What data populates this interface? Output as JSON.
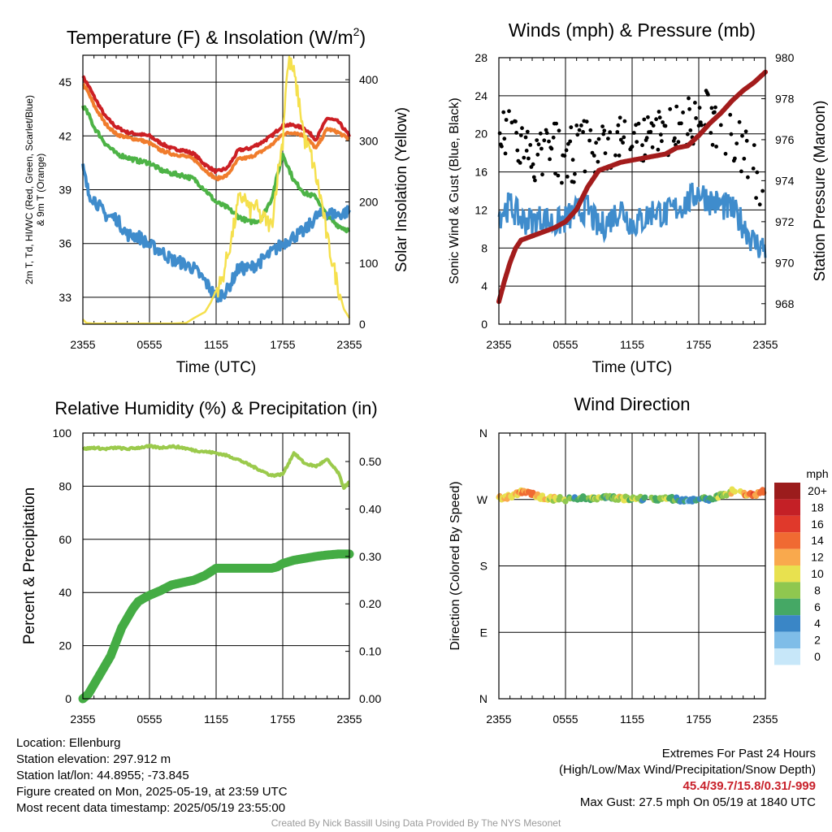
{
  "chart_data": [
    {
      "type": "line",
      "title": "Temperature (F) & Insolation (W/m",
      "title_sup": "2",
      "title_tail": ")",
      "xlabel": "Time (UTC)",
      "ylabel_left": "2m T, Td, HI/WC (Red, Green, Scarlet/Blue) & 9m T (Orange)",
      "ylabel_right": "Solar Insolation (Yellow)",
      "x_ticks": [
        "2355",
        "0555",
        "1155",
        "1755",
        "2355"
      ],
      "ylim_left": [
        31.5,
        46.5
      ],
      "yticks_left": [
        33,
        36,
        39,
        42,
        45
      ],
      "ylim_right": [
        0,
        440
      ],
      "yticks_right": [
        0,
        100,
        200,
        300,
        400
      ],
      "grid": true,
      "series": [
        {
          "axis": "left",
          "color": "#cc1f24",
          "width": 4,
          "x": [
            0,
            0.5,
            1,
            2,
            3,
            4,
            5,
            6,
            7,
            8,
            9,
            10,
            11,
            12,
            13,
            14,
            15,
            16,
            17,
            18,
            19,
            20,
            21,
            22,
            23,
            24
          ],
          "values": [
            45.3,
            44.8,
            44.2,
            43.1,
            42.5,
            42.2,
            42.1,
            42.0,
            41.6,
            41.3,
            41.2,
            41.0,
            40.4,
            40.0,
            40.2,
            41.2,
            41.3,
            41.6,
            42.0,
            42.6,
            42.6,
            42.4,
            41.8,
            43.0,
            42.8,
            42.0
          ]
        },
        {
          "axis": "left",
          "color": "#f07c2c",
          "width": 4,
          "x": [
            0,
            0.5,
            1,
            2,
            3,
            4,
            5,
            6,
            7,
            8,
            9,
            10,
            11,
            12,
            13,
            14,
            15,
            16,
            17,
            18,
            19,
            20,
            21,
            22,
            23,
            24
          ],
          "values": [
            44.9,
            44.4,
            43.7,
            42.7,
            42.1,
            41.9,
            41.8,
            41.6,
            41.2,
            41.0,
            40.9,
            40.7,
            40.1,
            39.6,
            39.8,
            40.7,
            40.8,
            41.1,
            41.5,
            42.1,
            42.2,
            42.0,
            41.3,
            42.4,
            42.2,
            41.8
          ]
        },
        {
          "axis": "left",
          "color": "#4db346",
          "width": 4,
          "x": [
            0,
            0.5,
            1,
            2,
            3,
            4,
            5,
            6,
            7,
            8,
            9,
            10,
            11,
            12,
            13,
            14,
            15,
            16,
            17,
            18,
            19,
            20,
            21,
            22,
            23,
            24
          ],
          "values": [
            43.7,
            43.2,
            42.5,
            41.6,
            41.0,
            40.8,
            40.6,
            40.5,
            40.1,
            39.9,
            39.8,
            39.6,
            39.0,
            38.3,
            38.0,
            37.5,
            37.2,
            37.3,
            38.5,
            41.0,
            39.5,
            38.8,
            38.6,
            37.5,
            37.0,
            36.7
          ]
        },
        {
          "axis": "left",
          "color": "#3f8ccc",
          "width": 4,
          "x": [
            0,
            0.5,
            1,
            2,
            3,
            4,
            5,
            6,
            7,
            8,
            9,
            10,
            11,
            12,
            13,
            14,
            15,
            16,
            17,
            18,
            19,
            20,
            21,
            22,
            23,
            24
          ],
          "values": [
            40.2,
            38.8,
            38.5,
            37.6,
            37.4,
            36.5,
            36.4,
            35.9,
            35.6,
            35.1,
            34.9,
            34.6,
            33.9,
            33.0,
            33.4,
            34.6,
            34.6,
            35.0,
            35.5,
            36.0,
            36.4,
            36.7,
            37.5,
            37.7,
            37.6,
            37.8
          ]
        },
        {
          "axis": "right",
          "color": "#f5e04d",
          "width": 2.5,
          "x": [
            0,
            0.3,
            1,
            3,
            5,
            8,
            9.3,
            10,
            11,
            11.5,
            12,
            12.5,
            13,
            13.5,
            14,
            14.5,
            15,
            15.5,
            16,
            16.5,
            17,
            17.5,
            18,
            18.3,
            18.6,
            19,
            19.5,
            20,
            20.5,
            21,
            21.5,
            22,
            22.5,
            23,
            23.5,
            24
          ],
          "values": [
            8,
            2,
            1,
            1,
            1,
            1,
            2,
            10,
            20,
            35,
            55,
            70,
            110,
            150,
            200,
            210,
            185,
            195,
            175,
            170,
            160,
            240,
            300,
            400,
            430,
            410,
            360,
            300,
            280,
            240,
            200,
            140,
            100,
            60,
            25,
            10
          ]
        }
      ]
    },
    {
      "type": "line",
      "title": "Winds (mph) & Pressure (mb)",
      "xlabel": "Time (UTC)",
      "ylabel_left": "Sonic Wind & Gust (Blue, Black)",
      "ylabel_right": "Station Pressure (Maroon)",
      "x_ticks": [
        "2355",
        "0555",
        "1155",
        "1755",
        "2355"
      ],
      "ylim_left": [
        0,
        28
      ],
      "yticks_left": [
        0,
        4,
        8,
        12,
        16,
        20,
        24,
        28
      ],
      "ylim_right": [
        967,
        980
      ],
      "yticks_right": [
        968,
        970,
        972,
        974,
        976,
        978,
        980
      ],
      "grid": true,
      "series": [
        {
          "name": "Sonic Wind",
          "axis": "left",
          "color": "#3f8ccc",
          "x": [
            0,
            1,
            2,
            3,
            4,
            5,
            6,
            7,
            8,
            9,
            10,
            11,
            12,
            13,
            14,
            15,
            16,
            17,
            18,
            19,
            20,
            21,
            22,
            23,
            24
          ],
          "values": [
            11.5,
            12.5,
            11.0,
            10.8,
            11.2,
            10.5,
            11.0,
            11.8,
            12.2,
            10.0,
            11.0,
            12.2,
            10.5,
            11.0,
            12.0,
            11.5,
            12.2,
            12.8,
            14.0,
            13.0,
            12.5,
            12.0,
            10.5,
            8.5,
            8.0
          ]
        },
        {
          "name": "Gust",
          "axis": "left",
          "color": "#000000",
          "x": [
            0,
            1,
            2,
            3,
            4,
            5,
            6,
            7,
            8,
            9,
            10,
            11,
            12,
            13,
            14,
            15,
            16,
            17,
            18,
            19,
            20,
            21,
            22,
            23,
            24
          ],
          "values": [
            19.5,
            19.5,
            19.0,
            17.5,
            18.0,
            18.5,
            17.5,
            18.0,
            19.0,
            18.0,
            19.0,
            19.5,
            20.0,
            19.0,
            20.0,
            19.5,
            21.0,
            21.0,
            22.0,
            21.5,
            21.0,
            20.0,
            18.0,
            16.0,
            14.0
          ]
        },
        {
          "name": "Station Pressure",
          "axis": "right",
          "color": "#a31c1c",
          "x": [
            0,
            0.5,
            1,
            1.5,
            2,
            2.5,
            3,
            4,
            5,
            6,
            7,
            8,
            9,
            10,
            11,
            12,
            13,
            14,
            15,
            16,
            17,
            18,
            19,
            20,
            21,
            22,
            23,
            24
          ],
          "values": [
            968.1,
            969.1,
            970.0,
            970.7,
            971.1,
            971.2,
            971.3,
            971.5,
            971.7,
            972.0,
            972.6,
            973.7,
            974.5,
            974.7,
            974.9,
            975.0,
            975.1,
            975.2,
            975.3,
            975.6,
            975.7,
            976.2,
            976.8,
            977.3,
            977.9,
            978.4,
            978.8,
            979.3
          ]
        }
      ]
    },
    {
      "type": "line",
      "title": "Relative Humidity (%) & Precipitation (in)",
      "ylabel_left": "Percent & Precipitation",
      "x_ticks": [
        "2355",
        "0555",
        "1155",
        "1755",
        "2355"
      ],
      "ylim_left": [
        0,
        100
      ],
      "yticks_left": [
        0,
        20,
        40,
        60,
        80,
        100
      ],
      "ylim_right": [
        0,
        0.56
      ],
      "yticks_right": [
        "0.00",
        "0.10",
        "0.20",
        "0.30",
        "0.40",
        "0.50"
      ],
      "grid": true,
      "series": [
        {
          "name": "Relative Humidity",
          "axis": "left",
          "color": "#9bca4c",
          "width": 4,
          "x": [
            0,
            1,
            2,
            3,
            4,
            5,
            6,
            7,
            8,
            9,
            10,
            11,
            12,
            13,
            14,
            15,
            16,
            17,
            18,
            19,
            20,
            21,
            22,
            23,
            23.5,
            24
          ],
          "values": [
            94.0,
            94.5,
            94.0,
            94.5,
            94.0,
            94.5,
            95.0,
            94.5,
            95.0,
            94.5,
            93.5,
            93.0,
            92.5,
            91.5,
            90.0,
            88.0,
            86.0,
            84.0,
            84.5,
            92.5,
            88.5,
            87.5,
            90.0,
            85.0,
            79.5,
            81.5
          ]
        },
        {
          "name": "Precipitation",
          "axis": "right",
          "color": "#44ac44",
          "width": 11,
          "x": [
            0,
            0.5,
            1,
            1.5,
            2,
            2.5,
            3,
            3.5,
            4,
            4.5,
            5,
            5.5,
            6,
            7,
            8,
            9,
            10,
            11,
            12,
            13,
            14,
            15,
            16,
            17,
            17.5,
            18,
            19,
            20,
            21,
            22,
            23,
            24
          ],
          "values": [
            0.0,
            0.01,
            0.03,
            0.05,
            0.07,
            0.09,
            0.12,
            0.15,
            0.17,
            0.19,
            0.205,
            0.212,
            0.218,
            0.228,
            0.24,
            0.245,
            0.25,
            0.26,
            0.275,
            0.275,
            0.275,
            0.275,
            0.275,
            0.275,
            0.278,
            0.285,
            0.292,
            0.296,
            0.3,
            0.303,
            0.305,
            0.305
          ]
        }
      ]
    },
    {
      "type": "scatter",
      "title": "Wind Direction",
      "ylabel_left": "Direction (Colored By Speed)",
      "x_ticks": [
        "2355",
        "0555",
        "1155",
        "1755",
        "2355"
      ],
      "ylim_left": [
        0,
        360
      ],
      "yticks_left": [
        0,
        90,
        180,
        270,
        360
      ],
      "ytick_labels": [
        "N",
        "E",
        "S",
        "W",
        "N"
      ],
      "grid": true,
      "legend_title": "mph",
      "legend_labels": [
        "20+",
        "18",
        "16",
        "14",
        "12",
        "10",
        "8",
        "6",
        "4",
        "2",
        "0"
      ],
      "legend_colors": [
        "#9b1c1c",
        "#c42026",
        "#e0392b",
        "#f06a32",
        "#f9a94d",
        "#e8e14f",
        "#8fc74f",
        "#45a865",
        "#3a86c6",
        "#7fbde8",
        "#c7e7f9"
      ],
      "x": [
        0,
        1,
        2,
        3,
        4,
        5,
        6,
        7,
        8,
        9,
        10,
        11,
        12,
        13,
        14,
        15,
        16,
        17,
        18,
        19,
        20,
        21,
        22,
        23,
        24
      ],
      "values": [
        272,
        274,
        280,
        278,
        272,
        271,
        270,
        272,
        271,
        272,
        273,
        271,
        272,
        271,
        270,
        272,
        270,
        269,
        270,
        271,
        275,
        281,
        278,
        276,
        282
      ],
      "speed_bins": [
        5,
        5,
        6,
        7,
        5,
        5,
        4,
        3,
        4,
        4,
        3,
        5,
        4,
        3,
        3,
        4,
        3,
        2,
        3,
        3,
        4,
        5,
        6,
        7,
        6
      ]
    }
  ],
  "footer": {
    "location": "Location: Ellenburg",
    "elevation": "Station elevation: 297.912 m",
    "latlon": "Station lat/lon: 44.8955; -73.845",
    "created": "Figure created on Mon, 2025-05-19, at 23:59 UTC",
    "recent": "Most recent data timestamp: 2025/05/19 23:55:00",
    "extremes_title": "Extremes For Past 24 Hours",
    "extremes_desc": "(High/Low/Max Wind/Precipitation/Snow Depth)",
    "extremes_values": "45.4/39.7/15.8/0.31/-999",
    "max_gust": "Max Gust: 27.5 mph On 05/19 at 1840 UTC",
    "credit": "Created By Nick Bassill Using Data Provided By The NYS Mesonet"
  }
}
